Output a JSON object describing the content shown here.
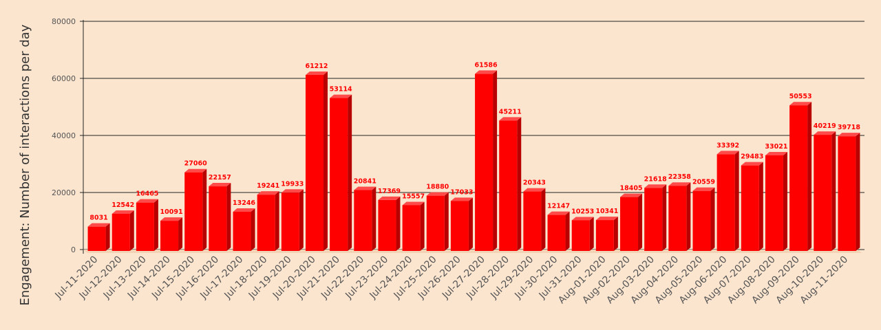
{
  "chart_data": {
    "type": "bar",
    "title": "",
    "xlabel": "",
    "ylabel": "Engagement: Number of interactions per day",
    "ylim": [
      0,
      80000
    ],
    "yticks": [
      0,
      20000,
      40000,
      60000,
      80000
    ],
    "grid": true,
    "bar_color": "#ff0000",
    "bar_side_color": "#b80000",
    "bar_top_color": "#ff4a4a",
    "background_color": "#fbe5cf",
    "categories": [
      "Jul-11-2020",
      "Jul-12-2020",
      "Jul-13-2020",
      "Jul-14-2020",
      "Jul-15-2020",
      "Jul-16-2020",
      "Jul-17-2020",
      "Jul-18-2020",
      "Jul-19-2020",
      "Jul-20-2020",
      "Jul-21-2020",
      "Jul-22-2020",
      "Jul-23-2020",
      "Jul-24-2020",
      "Jul-25-2020",
      "Jul-26-2020",
      "Jul-27-2020",
      "Jul-28-2020",
      "Jul-29-2020",
      "Jul-30-2020",
      "Jul-31-2020",
      "Aug-01-2020",
      "Aug-02-2020",
      "Aug-03-2020",
      "Aug-04-2020",
      "Aug-05-2020",
      "Aug-06-2020",
      "Aug-07-2020",
      "Aug-08-2020",
      "Aug-09-2020",
      "Aug-10-2020",
      "Aug-11-2020"
    ],
    "values": [
      8031,
      12542,
      16465,
      10091,
      27060,
      22157,
      13246,
      19241,
      19933,
      61212,
      53114,
      20841,
      17369,
      15557,
      18880,
      17033,
      61586,
      45211,
      20343,
      12147,
      10253,
      10341,
      18405,
      21618,
      22358,
      20559,
      33392,
      29483,
      33021,
      50553,
      40219,
      39718
    ]
  }
}
